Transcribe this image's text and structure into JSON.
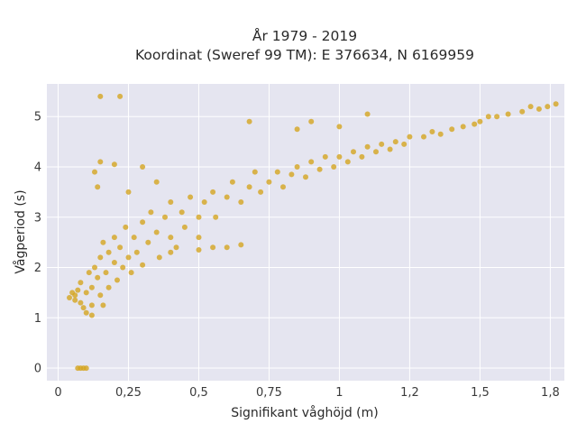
{
  "chart_data": {
    "type": "scatter",
    "title_line1": "År 1979 - 2019",
    "title_line2": "Koordinat (Sweref 99 TM): E 376634, N 6169959",
    "xlabel": "Signifikant våghöjd (m)",
    "ylabel": "Vågperiod (s)",
    "xlim": [
      -0.04,
      1.8
    ],
    "ylim": [
      -0.25,
      5.65
    ],
    "x_ticks": [
      0,
      0.25,
      0.5,
      0.75,
      1,
      1.25,
      1.5,
      1.75
    ],
    "x_tick_labels": [
      "0",
      "0,25",
      "0,5",
      "0,75",
      "1",
      "1,2",
      "1,5",
      "1,8"
    ],
    "y_ticks": [
      0,
      1,
      2,
      3,
      4,
      5
    ],
    "y_tick_labels": [
      "0",
      "1",
      "2",
      "3",
      "4",
      "5"
    ],
    "grid": true,
    "plot_background": "#e5e5f0",
    "marker_color": "#d4a520",
    "series": [
      {
        "points": [
          [
            0.07,
            0.0
          ],
          [
            0.08,
            0.0
          ],
          [
            0.09,
            0.0
          ],
          [
            0.1,
            0.0
          ],
          [
            0.04,
            1.4
          ],
          [
            0.05,
            1.5
          ],
          [
            0.06,
            1.45
          ],
          [
            0.06,
            1.35
          ],
          [
            0.07,
            1.55
          ],
          [
            0.08,
            1.3
          ],
          [
            0.08,
            1.7
          ],
          [
            0.09,
            1.2
          ],
          [
            0.1,
            1.1
          ],
          [
            0.1,
            1.5
          ],
          [
            0.11,
            1.9
          ],
          [
            0.12,
            1.6
          ],
          [
            0.12,
            1.25
          ],
          [
            0.13,
            2.0
          ],
          [
            0.14,
            1.8
          ],
          [
            0.15,
            2.2
          ],
          [
            0.15,
            1.45
          ],
          [
            0.16,
            2.5
          ],
          [
            0.17,
            1.9
          ],
          [
            0.18,
            2.3
          ],
          [
            0.18,
            1.6
          ],
          [
            0.2,
            2.1
          ],
          [
            0.2,
            2.6
          ],
          [
            0.21,
            1.75
          ],
          [
            0.22,
            2.4
          ],
          [
            0.23,
            2.0
          ],
          [
            0.24,
            2.8
          ],
          [
            0.25,
            2.2
          ],
          [
            0.26,
            1.9
          ],
          [
            0.27,
            2.6
          ],
          [
            0.28,
            2.3
          ],
          [
            0.3,
            2.9
          ],
          [
            0.3,
            2.05
          ],
          [
            0.32,
            2.5
          ],
          [
            0.33,
            3.1
          ],
          [
            0.35,
            2.7
          ],
          [
            0.36,
            2.2
          ],
          [
            0.38,
            3.0
          ],
          [
            0.4,
            2.6
          ],
          [
            0.4,
            3.3
          ],
          [
            0.42,
            2.4
          ],
          [
            0.44,
            3.1
          ],
          [
            0.45,
            2.8
          ],
          [
            0.47,
            3.4
          ],
          [
            0.5,
            3.0
          ],
          [
            0.5,
            2.6
          ],
          [
            0.52,
            3.3
          ],
          [
            0.55,
            3.5
          ],
          [
            0.56,
            3.0
          ],
          [
            0.6,
            3.4
          ],
          [
            0.62,
            3.7
          ],
          [
            0.65,
            3.3
          ],
          [
            0.68,
            3.6
          ],
          [
            0.7,
            3.9
          ],
          [
            0.72,
            3.5
          ],
          [
            0.75,
            3.7
          ],
          [
            0.78,
            3.9
          ],
          [
            0.8,
            3.6
          ],
          [
            0.83,
            3.85
          ],
          [
            0.85,
            4.0
          ],
          [
            0.88,
            3.8
          ],
          [
            0.9,
            4.1
          ],
          [
            0.93,
            3.95
          ],
          [
            0.95,
            4.2
          ],
          [
            0.98,
            4.0
          ],
          [
            1.0,
            4.2
          ],
          [
            1.03,
            4.1
          ],
          [
            1.05,
            4.3
          ],
          [
            1.08,
            4.2
          ],
          [
            1.1,
            4.4
          ],
          [
            1.13,
            4.3
          ],
          [
            1.15,
            4.45
          ],
          [
            1.18,
            4.35
          ],
          [
            1.2,
            4.5
          ],
          [
            1.23,
            4.45
          ],
          [
            1.25,
            4.6
          ],
          [
            1.3,
            4.6
          ],
          [
            1.33,
            4.7
          ],
          [
            1.36,
            4.65
          ],
          [
            1.4,
            4.75
          ],
          [
            1.44,
            4.8
          ],
          [
            1.48,
            4.85
          ],
          [
            1.5,
            4.9
          ],
          [
            1.53,
            5.0
          ],
          [
            1.56,
            5.0
          ],
          [
            1.6,
            5.05
          ],
          [
            1.65,
            5.1
          ],
          [
            1.68,
            5.2
          ],
          [
            1.71,
            5.15
          ],
          [
            1.74,
            5.2
          ],
          [
            1.77,
            5.25
          ],
          [
            0.15,
            5.4
          ],
          [
            0.22,
            5.4
          ],
          [
            0.15,
            4.1
          ],
          [
            0.13,
            3.9
          ],
          [
            0.14,
            3.6
          ],
          [
            0.2,
            4.05
          ],
          [
            0.3,
            4.0
          ],
          [
            0.4,
            2.3
          ],
          [
            0.5,
            2.35
          ],
          [
            0.55,
            2.4
          ],
          [
            0.6,
            2.4
          ],
          [
            0.65,
            2.45
          ],
          [
            0.68,
            4.9
          ],
          [
            0.9,
            4.9
          ],
          [
            1.1,
            5.05
          ],
          [
            1.0,
            4.8
          ],
          [
            0.85,
            4.75
          ],
          [
            0.12,
            1.05
          ],
          [
            0.16,
            1.25
          ],
          [
            0.25,
            3.5
          ],
          [
            0.35,
            3.7
          ]
        ]
      }
    ]
  }
}
